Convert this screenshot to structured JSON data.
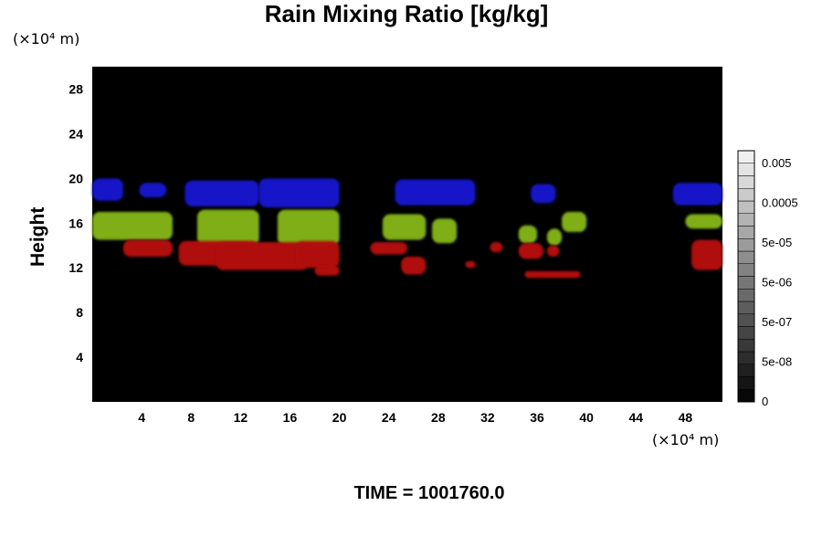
{
  "chart_data": {
    "type": "heatmap",
    "title": "Rain Mixing Ratio [kg/kg]",
    "ylabel": "Height",
    "x_unit": "(×10⁴ m)",
    "y_unit": "(×10⁴ m)",
    "time_label": "TIME = 1001760.0",
    "xlim": [
      0,
      51
    ],
    "ylim": [
      0,
      30
    ],
    "x_ticks": [
      "4",
      "8",
      "12",
      "16",
      "20",
      "24",
      "28",
      "32",
      "36",
      "40",
      "44",
      "48"
    ],
    "y_ticks": [
      "4",
      "8",
      "12",
      "16",
      "20",
      "24",
      "28"
    ],
    "colorbar_labels": [
      "0.005",
      "0.0005",
      "5e-05",
      "5e-06",
      "5e-07",
      "5e-08",
      "0"
    ],
    "colors": {
      "background": "#000000",
      "upper_band": "#1414c8",
      "middle_band": "#7fae14",
      "lower_band": "#b01010"
    },
    "bands": [
      {
        "name": "upper",
        "color_key": "upper_band",
        "blobs": [
          {
            "x0": 0.0,
            "x1": 2.5,
            "y0": 18.0,
            "y1": 20.0
          },
          {
            "x0": 3.8,
            "x1": 6.0,
            "y0": 18.3,
            "y1": 19.6
          },
          {
            "x0": 7.5,
            "x1": 13.5,
            "y0": 17.5,
            "y1": 19.8
          },
          {
            "x0": 13.5,
            "x1": 20.0,
            "y0": 17.4,
            "y1": 20.0
          },
          {
            "x0": 24.5,
            "x1": 31.0,
            "y0": 17.6,
            "y1": 19.9
          },
          {
            "x0": 35.5,
            "x1": 37.5,
            "y0": 17.8,
            "y1": 19.5
          },
          {
            "x0": 47.0,
            "x1": 51.0,
            "y0": 17.6,
            "y1": 19.6
          }
        ]
      },
      {
        "name": "middle",
        "color_key": "middle_band",
        "blobs": [
          {
            "x0": 0.0,
            "x1": 6.5,
            "y0": 14.5,
            "y1": 17.0
          },
          {
            "x0": 8.5,
            "x1": 13.5,
            "y0": 14.0,
            "y1": 17.2
          },
          {
            "x0": 15.0,
            "x1": 20.0,
            "y0": 14.0,
            "y1": 17.2
          },
          {
            "x0": 23.5,
            "x1": 27.0,
            "y0": 14.5,
            "y1": 16.8
          },
          {
            "x0": 27.5,
            "x1": 29.5,
            "y0": 14.2,
            "y1": 16.4
          },
          {
            "x0": 34.5,
            "x1": 36.0,
            "y0": 14.2,
            "y1": 15.8
          },
          {
            "x0": 36.8,
            "x1": 38.0,
            "y0": 14.0,
            "y1": 15.5
          },
          {
            "x0": 38.0,
            "x1": 40.0,
            "y0": 15.2,
            "y1": 17.0
          },
          {
            "x0": 48.0,
            "x1": 51.0,
            "y0": 15.5,
            "y1": 16.8
          }
        ]
      },
      {
        "name": "lower",
        "color_key": "lower_band",
        "blobs": [
          {
            "x0": 2.5,
            "x1": 6.5,
            "y0": 13.0,
            "y1": 14.5
          },
          {
            "x0": 7.0,
            "x1": 13.5,
            "y0": 12.2,
            "y1": 14.4
          },
          {
            "x0": 10.0,
            "x1": 17.5,
            "y0": 11.8,
            "y1": 14.3
          },
          {
            "x0": 16.5,
            "x1": 20.0,
            "y0": 12.0,
            "y1": 14.4
          },
          {
            "x0": 18.0,
            "x1": 20.0,
            "y0": 11.3,
            "y1": 12.2
          },
          {
            "x0": 22.5,
            "x1": 25.5,
            "y0": 13.2,
            "y1": 14.3
          },
          {
            "x0": 25.0,
            "x1": 27.0,
            "y0": 11.4,
            "y1": 13.0
          },
          {
            "x0": 30.2,
            "x1": 31.0,
            "y0": 12.0,
            "y1": 12.6
          },
          {
            "x0": 32.2,
            "x1": 33.2,
            "y0": 13.4,
            "y1": 14.3
          },
          {
            "x0": 34.5,
            "x1": 36.5,
            "y0": 12.8,
            "y1": 14.2
          },
          {
            "x0": 36.8,
            "x1": 37.8,
            "y0": 13.0,
            "y1": 14.0
          },
          {
            "x0": 35.0,
            "x1": 39.5,
            "y0": 11.1,
            "y1": 11.7
          },
          {
            "x0": 48.5,
            "x1": 51.0,
            "y0": 11.8,
            "y1": 14.5
          }
        ]
      }
    ]
  }
}
